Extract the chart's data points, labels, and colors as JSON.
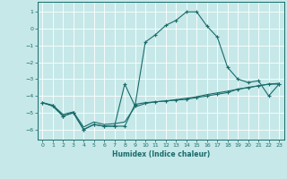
{
  "xlabel": "Humidex (Indice chaleur)",
  "bg_color": "#c6e8e8",
  "grid_color": "#dde8e8",
  "line_color": "#1a6b6b",
  "xlim": [
    -0.5,
    23.5
  ],
  "ylim": [
    -6.6,
    1.6
  ],
  "xticks": [
    0,
    1,
    2,
    3,
    4,
    5,
    6,
    7,
    8,
    9,
    10,
    11,
    12,
    13,
    14,
    15,
    16,
    17,
    18,
    19,
    20,
    21,
    22,
    23
  ],
  "yticks": [
    -6,
    -5,
    -4,
    -3,
    -2,
    -1,
    0,
    1
  ],
  "line_peak_x": [
    0,
    1,
    2,
    3,
    4,
    5,
    6,
    7,
    8,
    9,
    10,
    11,
    12,
    13,
    14,
    15,
    16,
    17,
    18,
    19,
    20,
    21,
    22,
    23
  ],
  "line_peak_y": [
    -4.4,
    -4.6,
    -5.2,
    -5.0,
    -6.0,
    -5.7,
    -5.8,
    -5.8,
    -3.3,
    -4.6,
    -0.8,
    -0.35,
    0.2,
    0.5,
    1.0,
    1.0,
    0.15,
    -0.5,
    -2.3,
    -3.0,
    -3.2,
    -3.1,
    -4.0,
    -3.3
  ],
  "line_bumpy_x": [
    0,
    1,
    2,
    3,
    4,
    5,
    6,
    7,
    8,
    9,
    10,
    11,
    12,
    13,
    14,
    15,
    16,
    17,
    18,
    19,
    20,
    21,
    22,
    23
  ],
  "line_bumpy_y": [
    -4.4,
    -4.6,
    -5.2,
    -5.0,
    -6.0,
    -5.7,
    -5.8,
    -5.8,
    -5.8,
    -4.5,
    -4.4,
    -4.35,
    -4.3,
    -4.25,
    -4.2,
    -4.1,
    -4.0,
    -3.9,
    -3.8,
    -3.6,
    -3.5,
    -3.4,
    -3.3,
    -3.3
  ],
  "line_flat_x": [
    0,
    1,
    2,
    3,
    4,
    5,
    6,
    7,
    8,
    9,
    10,
    11,
    12,
    13,
    14,
    15,
    16,
    17,
    18,
    19,
    20,
    21,
    22,
    23
  ],
  "line_flat_y": [
    -4.4,
    -4.55,
    -5.1,
    -4.95,
    -5.85,
    -5.55,
    -5.7,
    -5.65,
    -5.55,
    -4.65,
    -4.45,
    -4.35,
    -4.3,
    -4.22,
    -4.14,
    -4.05,
    -3.92,
    -3.82,
    -3.72,
    -3.6,
    -3.5,
    -3.4,
    -3.3,
    -3.25
  ]
}
